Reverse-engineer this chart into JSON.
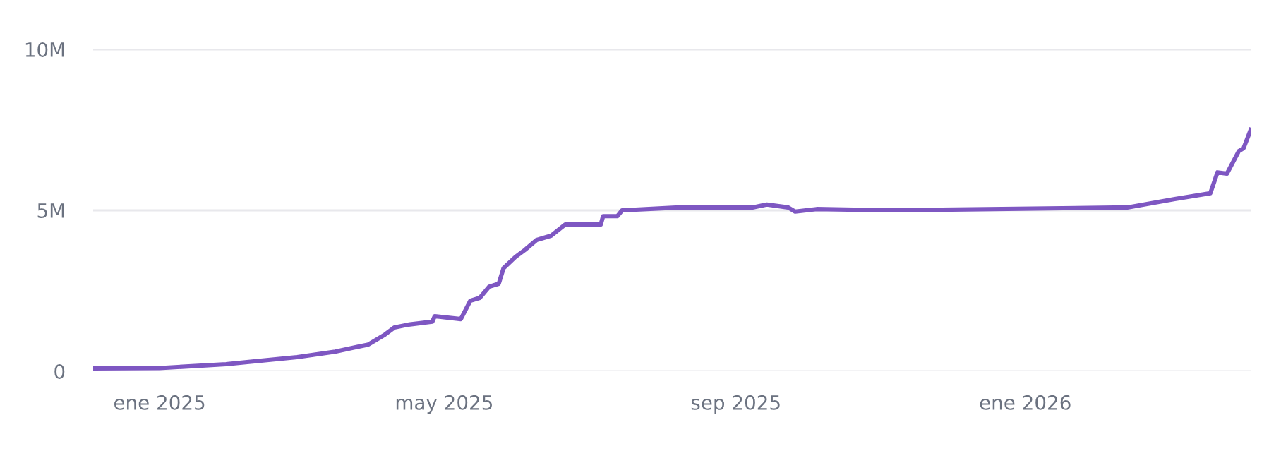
{
  "chart_data": {
    "type": "line",
    "color": "#7e57c2",
    "x": [
      "2024-12-04",
      "2025-01-01",
      "2025-01-29",
      "2025-02-28",
      "2025-03-16",
      "2025-03-30",
      "2025-04-06",
      "2025-04-10",
      "2025-04-16",
      "2025-04-26",
      "2025-04-27",
      "2025-05-08",
      "2025-05-12",
      "2025-05-16",
      "2025-05-20",
      "2025-05-24",
      "2025-05-26",
      "2025-05-31",
      "2025-06-04",
      "2025-06-09",
      "2025-06-15",
      "2025-06-21",
      "2025-07-06",
      "2025-07-07",
      "2025-07-13",
      "2025-07-15",
      "2025-08-08",
      "2025-09-08",
      "2025-09-14",
      "2025-09-23",
      "2025-09-26",
      "2025-10-05",
      "2025-11-05",
      "2026-02-13",
      "2026-03-05",
      "2026-03-20",
      "2026-03-23",
      "2026-03-27",
      "2026-04-01",
      "2026-04-03",
      "2026-04-06"
    ],
    "values": [
      90000,
      100000,
      220000,
      440000,
      610000,
      830000,
      1140000,
      1360000,
      1450000,
      1540000,
      1710000,
      1620000,
      2190000,
      2280000,
      2630000,
      2720000,
      3200000,
      3550000,
      3770000,
      4080000,
      4210000,
      4560000,
      4560000,
      4820000,
      4820000,
      5000000,
      5090000,
      5090000,
      5180000,
      5090000,
      4960000,
      5040000,
      5000000,
      5090000,
      5350000,
      5530000,
      6180000,
      6140000,
      6840000,
      6930000,
      7500000
    ],
    "xlim": [
      "2024-12-04",
      "2026-04-06"
    ],
    "xticks": [
      {
        "value": "2025-01-01",
        "label": "ene 2025"
      },
      {
        "value": "2025-05-01",
        "label": "may 2025"
      },
      {
        "value": "2025-09-01",
        "label": "sep 2025"
      },
      {
        "value": "2026-01-01",
        "label": "ene 2026"
      }
    ],
    "ylim": [
      0,
      10000000
    ],
    "yticks": [
      0,
      {
        "value": 5000000,
        "label": "5M"
      },
      {
        "value": 10000000,
        "label": "10M"
      }
    ],
    "grid": "y",
    "line_style": "solid"
  }
}
